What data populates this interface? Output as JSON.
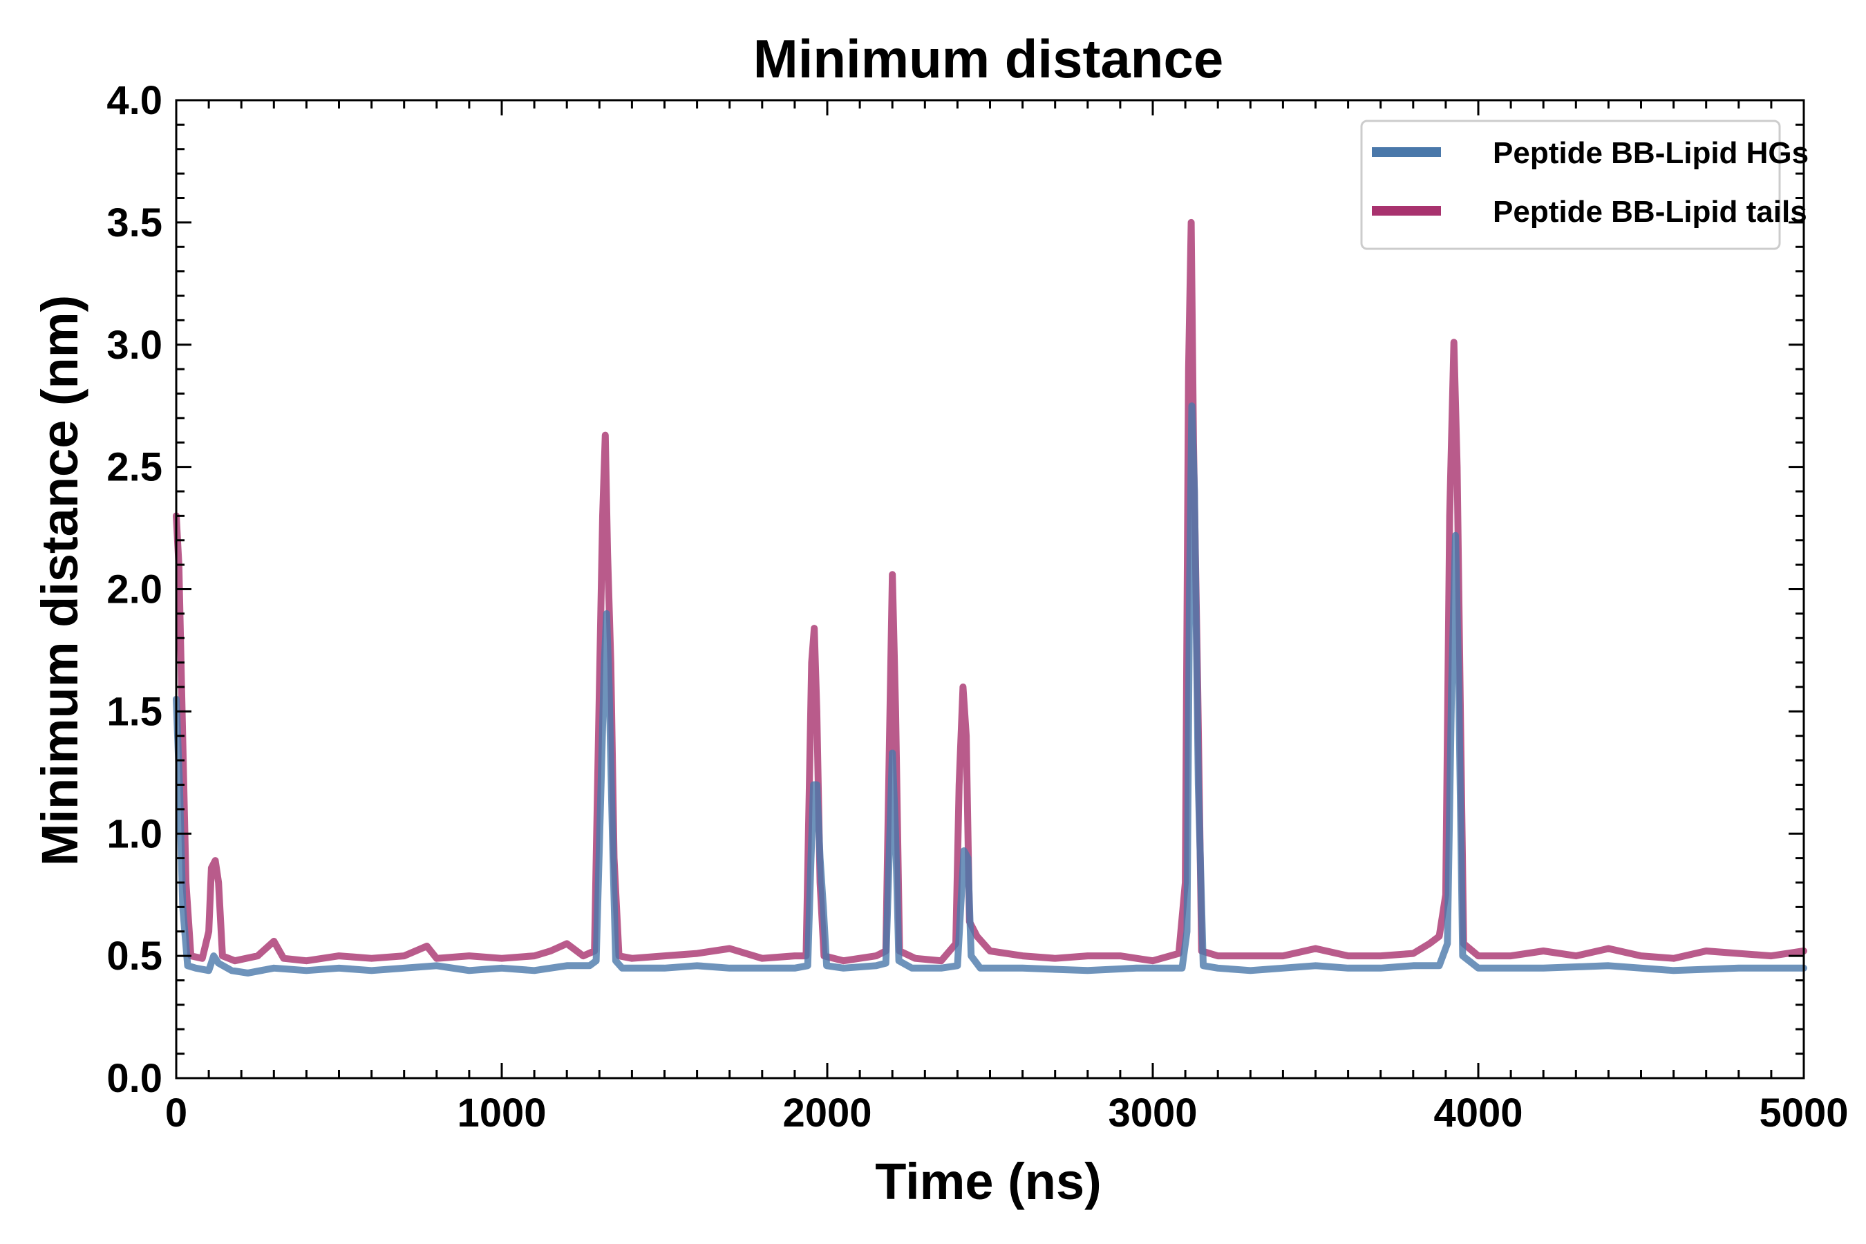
{
  "chart_data": {
    "type": "line",
    "title": "Minimum distance",
    "xlabel": "Time (ns)",
    "ylabel": "Minimum distance (nm)",
    "xlim": [
      0,
      5000
    ],
    "ylim": [
      0.0,
      4.0
    ],
    "xticks": [
      0,
      1000,
      2000,
      3000,
      4000,
      5000
    ],
    "xtick_labels": [
      "0",
      "1000",
      "2000",
      "3000",
      "4000",
      "5000"
    ],
    "yticks": [
      0.0,
      0.5,
      1.0,
      1.5,
      2.0,
      2.5,
      3.0,
      3.5,
      4.0
    ],
    "ytick_labels": [
      "0.0",
      "0.5",
      "1.0",
      "1.5",
      "2.0",
      "2.5",
      "3.0",
      "3.5",
      "4.0"
    ],
    "grid": false,
    "legend_position": "top-right",
    "series": [
      {
        "name": "Peptide BB-Lipid HGs",
        "color": "#4a78aa",
        "points": [
          [
            0,
            1.55
          ],
          [
            10,
            1.2
          ],
          [
            20,
            0.7
          ],
          [
            35,
            0.46
          ],
          [
            60,
            0.45
          ],
          [
            100,
            0.44
          ],
          [
            115,
            0.5
          ],
          [
            130,
            0.47
          ],
          [
            170,
            0.44
          ],
          [
            220,
            0.43
          ],
          [
            300,
            0.45
          ],
          [
            400,
            0.44
          ],
          [
            500,
            0.45
          ],
          [
            600,
            0.44
          ],
          [
            700,
            0.45
          ],
          [
            800,
            0.46
          ],
          [
            900,
            0.44
          ],
          [
            1000,
            0.45
          ],
          [
            1100,
            0.44
          ],
          [
            1200,
            0.46
          ],
          [
            1270,
            0.46
          ],
          [
            1290,
            0.48
          ],
          [
            1305,
            1.2
          ],
          [
            1315,
            1.7
          ],
          [
            1322,
            1.9
          ],
          [
            1330,
            1.6
          ],
          [
            1340,
            1.0
          ],
          [
            1350,
            0.48
          ],
          [
            1370,
            0.45
          ],
          [
            1500,
            0.45
          ],
          [
            1600,
            0.46
          ],
          [
            1700,
            0.45
          ],
          [
            1800,
            0.45
          ],
          [
            1900,
            0.45
          ],
          [
            1940,
            0.46
          ],
          [
            1950,
            0.9
          ],
          [
            1958,
            1.2
          ],
          [
            1968,
            1.2
          ],
          [
            1978,
            0.9
          ],
          [
            1988,
            0.7
          ],
          [
            1998,
            0.46
          ],
          [
            2050,
            0.45
          ],
          [
            2150,
            0.46
          ],
          [
            2180,
            0.47
          ],
          [
            2190,
            0.9
          ],
          [
            2200,
            1.33
          ],
          [
            2210,
            1.0
          ],
          [
            2220,
            0.48
          ],
          [
            2260,
            0.45
          ],
          [
            2350,
            0.45
          ],
          [
            2400,
            0.46
          ],
          [
            2410,
            0.7
          ],
          [
            2420,
            0.93
          ],
          [
            2432,
            0.9
          ],
          [
            2442,
            0.5
          ],
          [
            2470,
            0.45
          ],
          [
            2600,
            0.45
          ],
          [
            2800,
            0.44
          ],
          [
            2950,
            0.45
          ],
          [
            3090,
            0.45
          ],
          [
            3105,
            0.6
          ],
          [
            3113,
            2.0
          ],
          [
            3120,
            2.75
          ],
          [
            3128,
            2.4
          ],
          [
            3140,
            1.2
          ],
          [
            3155,
            0.46
          ],
          [
            3200,
            0.45
          ],
          [
            3300,
            0.44
          ],
          [
            3400,
            0.45
          ],
          [
            3500,
            0.46
          ],
          [
            3600,
            0.45
          ],
          [
            3700,
            0.45
          ],
          [
            3800,
            0.46
          ],
          [
            3880,
            0.46
          ],
          [
            3905,
            0.55
          ],
          [
            3918,
            1.6
          ],
          [
            3930,
            2.22
          ],
          [
            3940,
            1.6
          ],
          [
            3952,
            0.5
          ],
          [
            4000,
            0.45
          ],
          [
            4200,
            0.45
          ],
          [
            4400,
            0.46
          ],
          [
            4600,
            0.44
          ],
          [
            4800,
            0.45
          ],
          [
            5000,
            0.45
          ]
        ]
      },
      {
        "name": "Peptide BB-Lipid tails",
        "color": "#a8326e",
        "points": [
          [
            0,
            2.3
          ],
          [
            8,
            2.1
          ],
          [
            18,
            1.5
          ],
          [
            30,
            0.8
          ],
          [
            45,
            0.5
          ],
          [
            80,
            0.49
          ],
          [
            100,
            0.6
          ],
          [
            108,
            0.86
          ],
          [
            120,
            0.89
          ],
          [
            130,
            0.8
          ],
          [
            142,
            0.5
          ],
          [
            180,
            0.48
          ],
          [
            250,
            0.5
          ],
          [
            300,
            0.56
          ],
          [
            330,
            0.49
          ],
          [
            400,
            0.48
          ],
          [
            500,
            0.5
          ],
          [
            600,
            0.49
          ],
          [
            700,
            0.5
          ],
          [
            770,
            0.54
          ],
          [
            800,
            0.49
          ],
          [
            900,
            0.5
          ],
          [
            1000,
            0.49
          ],
          [
            1100,
            0.5
          ],
          [
            1150,
            0.52
          ],
          [
            1200,
            0.55
          ],
          [
            1250,
            0.5
          ],
          [
            1285,
            0.52
          ],
          [
            1300,
            1.6
          ],
          [
            1310,
            2.3
          ],
          [
            1318,
            2.63
          ],
          [
            1325,
            2.15
          ],
          [
            1335,
            1.7
          ],
          [
            1345,
            0.9
          ],
          [
            1360,
            0.5
          ],
          [
            1400,
            0.49
          ],
          [
            1500,
            0.5
          ],
          [
            1600,
            0.51
          ],
          [
            1700,
            0.53
          ],
          [
            1800,
            0.49
          ],
          [
            1900,
            0.5
          ],
          [
            1935,
            0.5
          ],
          [
            1945,
            1.2
          ],
          [
            1952,
            1.7
          ],
          [
            1960,
            1.84
          ],
          [
            1968,
            1.5
          ],
          [
            1978,
            0.8
          ],
          [
            1990,
            0.5
          ],
          [
            2050,
            0.48
          ],
          [
            2150,
            0.5
          ],
          [
            2180,
            0.52
          ],
          [
            2190,
            1.3
          ],
          [
            2200,
            2.06
          ],
          [
            2210,
            1.5
          ],
          [
            2222,
            0.52
          ],
          [
            2270,
            0.49
          ],
          [
            2350,
            0.48
          ],
          [
            2395,
            0.55
          ],
          [
            2405,
            1.2
          ],
          [
            2417,
            1.6
          ],
          [
            2427,
            1.4
          ],
          [
            2437,
            0.64
          ],
          [
            2460,
            0.58
          ],
          [
            2500,
            0.52
          ],
          [
            2600,
            0.5
          ],
          [
            2700,
            0.49
          ],
          [
            2800,
            0.5
          ],
          [
            2900,
            0.5
          ],
          [
            3000,
            0.48
          ],
          [
            3080,
            0.51
          ],
          [
            3100,
            0.8
          ],
          [
            3110,
            2.9
          ],
          [
            3118,
            3.5
          ],
          [
            3125,
            2.6
          ],
          [
            3138,
            1.6
          ],
          [
            3150,
            0.52
          ],
          [
            3200,
            0.5
          ],
          [
            3300,
            0.5
          ],
          [
            3400,
            0.5
          ],
          [
            3500,
            0.53
          ],
          [
            3600,
            0.5
          ],
          [
            3700,
            0.5
          ],
          [
            3800,
            0.51
          ],
          [
            3850,
            0.55
          ],
          [
            3880,
            0.58
          ],
          [
            3900,
            0.75
          ],
          [
            3912,
            2.3
          ],
          [
            3925,
            3.01
          ],
          [
            3935,
            2.5
          ],
          [
            3945,
            1.5
          ],
          [
            3955,
            0.55
          ],
          [
            4000,
            0.5
          ],
          [
            4100,
            0.5
          ],
          [
            4200,
            0.52
          ],
          [
            4300,
            0.5
          ],
          [
            4400,
            0.53
          ],
          [
            4500,
            0.5
          ],
          [
            4600,
            0.49
          ],
          [
            4700,
            0.52
          ],
          [
            4800,
            0.51
          ],
          [
            4900,
            0.5
          ],
          [
            5000,
            0.52
          ]
        ]
      }
    ]
  }
}
